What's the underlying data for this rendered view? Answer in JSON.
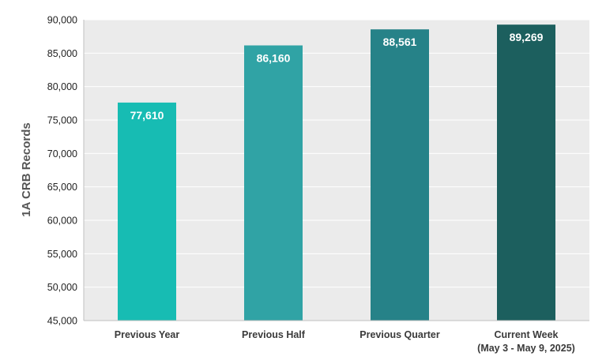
{
  "chart_data": {
    "type": "bar",
    "title": "",
    "xlabel": "",
    "ylabel": "1A CRB Records",
    "categories": [
      [
        "Previous Year"
      ],
      [
        "Previous Half"
      ],
      [
        "Previous Quarter"
      ],
      [
        "Current Week",
        "(May 3 - May 9, 2025)"
      ]
    ],
    "values": [
      77610,
      86160,
      88561,
      89269
    ],
    "value_labels": [
      "77,610",
      "86,160",
      "88,561",
      "89,269"
    ],
    "bar_colors": [
      "#17bcb3",
      "#30a3a5",
      "#268288",
      "#1c5f5e"
    ],
    "ylim": [
      45000,
      90000
    ],
    "yticks": [
      45000,
      50000,
      55000,
      60000,
      65000,
      70000,
      75000,
      80000,
      85000,
      90000
    ],
    "ytick_labels": [
      "45,000",
      "50,000",
      "55,000",
      "60,000",
      "65,000",
      "70,000",
      "75,000",
      "80,000",
      "85,000",
      "90,000"
    ],
    "grid": "horizontal",
    "plot_background": "#ebebeb",
    "legend": "none"
  }
}
